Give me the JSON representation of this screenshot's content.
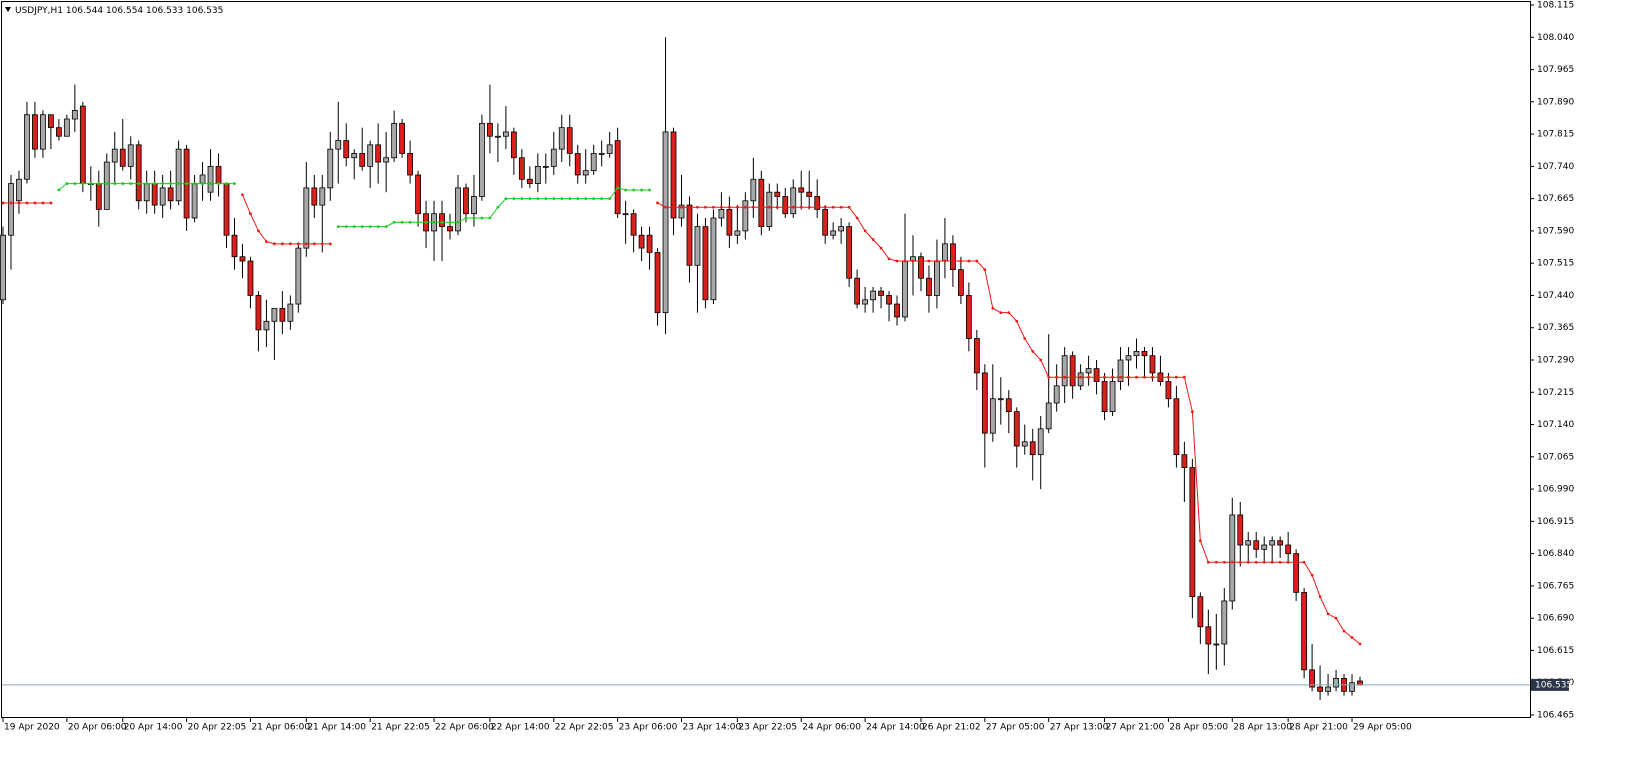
{
  "chart_data": {
    "type": "candlestick",
    "title": "USDJPY,H1",
    "open": [
      107.43,
      107.58,
      107.66,
      107.71,
      107.86,
      107.78,
      107.86,
      107.83,
      107.81,
      107.85,
      107.88,
      107.7,
      107.7,
      107.64,
      107.75,
      107.78,
      107.74,
      107.79,
      107.66,
      107.7,
      107.65,
      107.69,
      107.66,
      107.78,
      107.62,
      107.7,
      107.68,
      107.74,
      107.7,
      107.58,
      107.53,
      107.52,
      107.44,
      107.36,
      107.38,
      107.41,
      107.38,
      107.42,
      107.55,
      107.69,
      107.65,
      107.69,
      107.78,
      107.8,
      107.76,
      107.77,
      107.74,
      107.79,
      107.75,
      107.76,
      107.84,
      107.77,
      107.72,
      107.63,
      107.59,
      107.63,
      107.6,
      107.59,
      107.69,
      107.63,
      107.67,
      107.84,
      107.81,
      107.81,
      107.82,
      107.76,
      107.71,
      107.7,
      107.74,
      107.74,
      107.78,
      107.83,
      107.77,
      107.72,
      107.73,
      107.77,
      107.77,
      107.8,
      107.63,
      107.63,
      107.58,
      107.58,
      107.54,
      107.4,
      107.82,
      107.62,
      107.65,
      107.51,
      107.6,
      107.43,
      107.62,
      107.64,
      107.58,
      107.59,
      107.66,
      107.71,
      107.6,
      107.68,
      107.67,
      107.63,
      107.69,
      107.68,
      107.67,
      107.64,
      107.58,
      107.59,
      107.6,
      107.48,
      107.42,
      107.43,
      107.45,
      107.44,
      107.42,
      107.39,
      107.52,
      107.53,
      107.48,
      107.44,
      107.52,
      107.56,
      107.5,
      107.44,
      107.34,
      107.26,
      107.12,
      107.2,
      107.2,
      107.17,
      107.09,
      107.1,
      107.07,
      107.13,
      107.19,
      107.23,
      107.3,
      107.23,
      107.26,
      107.27,
      107.24,
      107.17,
      107.24,
      107.29,
      107.3,
      107.31,
      107.3,
      107.26,
      107.24,
      107.2,
      107.07,
      107.04,
      106.74,
      106.67,
      106.63,
      106.63,
      106.73,
      106.93,
      106.86,
      106.87,
      106.85,
      106.86,
      106.87,
      106.86,
      106.84,
      106.75,
      106.57,
      106.53,
      106.52,
      106.53,
      106.55,
      106.52,
      106.544
    ],
    "high": [
      107.6,
      107.72,
      107.73,
      107.89,
      107.89,
      107.87,
      107.86,
      107.85,
      107.86,
      107.93,
      107.89,
      107.74,
      107.73,
      107.77,
      107.82,
      107.85,
      107.81,
      107.8,
      107.73,
      107.73,
      107.72,
      107.73,
      107.8,
      107.79,
      107.72,
      107.75,
      107.78,
      107.77,
      107.7,
      107.62,
      107.56,
      107.53,
      107.45,
      107.43,
      107.4,
      107.45,
      107.44,
      107.56,
      107.75,
      107.72,
      107.72,
      107.82,
      107.89,
      107.84,
      107.78,
      107.83,
      107.8,
      107.84,
      107.82,
      107.87,
      107.85,
      107.8,
      107.73,
      107.66,
      107.66,
      107.66,
      107.63,
      107.72,
      107.7,
      107.72,
      107.86,
      107.93,
      107.84,
      107.88,
      107.83,
      107.78,
      107.74,
      107.77,
      107.77,
      107.82,
      107.86,
      107.86,
      107.79,
      107.78,
      107.79,
      107.8,
      107.82,
      107.83,
      107.66,
      107.64,
      107.6,
      107.6,
      107.55,
      108.04,
      107.83,
      107.72,
      107.67,
      107.63,
      107.62,
      107.64,
      107.68,
      107.67,
      107.65,
      107.68,
      107.76,
      107.73,
      107.7,
      107.7,
      107.69,
      107.71,
      107.73,
      107.73,
      107.71,
      107.65,
      107.61,
      107.62,
      107.61,
      107.5,
      107.46,
      107.46,
      107.46,
      107.45,
      107.44,
      107.63,
      107.58,
      107.54,
      107.51,
      107.57,
      107.62,
      107.58,
      107.53,
      107.47,
      107.36,
      107.28,
      107.28,
      107.25,
      107.22,
      107.18,
      107.14,
      107.13,
      107.16,
      107.35,
      107.28,
      107.32,
      107.31,
      107.28,
      107.3,
      107.29,
      107.26,
      107.27,
      107.32,
      107.32,
      107.34,
      107.32,
      107.32,
      107.3,
      107.26,
      107.23,
      107.1,
      107.06,
      106.75,
      106.71,
      106.7,
      106.76,
      106.97,
      106.96,
      106.89,
      106.89,
      106.88,
      106.88,
      106.88,
      106.89,
      106.85,
      106.76,
      106.63,
      106.58,
      106.56,
      106.57,
      106.56,
      106.56,
      106.554
    ],
    "low": [
      107.42,
      107.5,
      107.63,
      107.7,
      107.76,
      107.76,
      107.78,
      107.8,
      107.81,
      107.82,
      107.68,
      107.66,
      107.6,
      107.64,
      107.7,
      107.73,
      107.71,
      107.64,
      107.63,
      107.63,
      107.62,
      107.64,
      107.65,
      107.59,
      107.61,
      107.66,
      107.66,
      107.67,
      107.55,
      107.5,
      107.48,
      107.41,
      107.31,
      107.32,
      107.29,
      107.35,
      107.36,
      107.4,
      107.53,
      107.62,
      107.54,
      107.66,
      107.7,
      107.74,
      107.71,
      107.73,
      107.69,
      107.7,
      107.68,
      107.75,
      107.76,
      107.7,
      107.6,
      107.55,
      107.52,
      107.52,
      107.57,
      107.58,
      107.61,
      107.6,
      107.66,
      107.77,
      107.75,
      107.78,
      107.72,
      107.69,
      107.69,
      107.68,
      107.7,
      107.72,
      107.75,
      107.74,
      107.7,
      107.7,
      107.72,
      107.74,
      107.76,
      107.62,
      107.56,
      107.54,
      107.52,
      107.5,
      107.37,
      107.35,
      107.58,
      107.6,
      107.47,
      107.4,
      107.41,
      107.42,
      107.6,
      107.55,
      107.56,
      107.57,
      107.62,
      107.58,
      107.59,
      107.64,
      107.62,
      107.62,
      107.64,
      107.64,
      107.62,
      107.56,
      107.57,
      107.56,
      107.46,
      107.41,
      107.4,
      107.4,
      107.41,
      107.38,
      107.37,
      107.38,
      107.44,
      107.45,
      107.4,
      107.41,
      107.48,
      107.46,
      107.42,
      107.31,
      107.22,
      107.04,
      107.1,
      107.14,
      107.12,
      107.04,
      107.07,
      107.01,
      106.99,
      107.12,
      107.17,
      107.19,
      107.2,
      107.22,
      107.23,
      107.21,
      107.15,
      107.16,
      107.22,
      107.23,
      107.27,
      107.25,
      107.24,
      107.23,
      107.18,
      107.04,
      106.96,
      106.69,
      106.63,
      106.56,
      106.57,
      106.58,
      106.71,
      106.81,
      106.82,
      106.83,
      106.82,
      106.82,
      106.83,
      106.82,
      106.73,
      106.55,
      106.52,
      106.5,
      106.51,
      106.52,
      106.51,
      106.51,
      106.533
    ],
    "close": [
      107.58,
      107.7,
      107.71,
      107.86,
      107.78,
      107.86,
      107.83,
      107.81,
      107.85,
      107.87,
      107.7,
      107.7,
      107.64,
      107.75,
      107.78,
      107.74,
      107.79,
      107.66,
      107.7,
      107.65,
      107.69,
      107.66,
      107.78,
      107.62,
      107.7,
      107.72,
      107.74,
      107.7,
      107.58,
      107.53,
      107.52,
      107.44,
      107.36,
      107.38,
      107.41,
      107.38,
      107.42,
      107.55,
      107.69,
      107.65,
      107.69,
      107.78,
      107.8,
      107.76,
      107.77,
      107.74,
      107.79,
      107.75,
      107.76,
      107.84,
      107.77,
      107.72,
      107.63,
      107.59,
      107.63,
      107.6,
      107.59,
      107.69,
      107.63,
      107.67,
      107.84,
      107.81,
      107.81,
      107.82,
      107.76,
      107.71,
      107.7,
      107.74,
      107.74,
      107.78,
      107.83,
      107.77,
      107.72,
      107.73,
      107.77,
      107.77,
      107.79,
      107.63,
      107.63,
      107.58,
      107.55,
      107.54,
      107.4,
      107.82,
      107.62,
      107.65,
      107.51,
      107.6,
      107.43,
      107.62,
      107.64,
      107.58,
      107.59,
      107.66,
      107.71,
      107.6,
      107.68,
      107.67,
      107.63,
      107.69,
      107.68,
      107.67,
      107.64,
      107.58,
      107.59,
      107.6,
      107.48,
      107.42,
      107.43,
      107.45,
      107.44,
      107.42,
      107.39,
      107.52,
      107.53,
      107.48,
      107.44,
      107.52,
      107.56,
      107.5,
      107.44,
      107.34,
      107.26,
      107.12,
      107.2,
      107.2,
      107.17,
      107.09,
      107.1,
      107.07,
      107.13,
      107.19,
      107.23,
      107.3,
      107.23,
      107.26,
      107.27,
      107.24,
      107.17,
      107.24,
      107.29,
      107.3,
      107.31,
      107.3,
      107.26,
      107.24,
      107.2,
      107.07,
      107.04,
      106.74,
      106.67,
      106.63,
      106.63,
      106.73,
      106.93,
      106.86,
      106.87,
      106.85,
      106.86,
      106.87,
      106.86,
      106.84,
      106.75,
      106.57,
      106.53,
      106.52,
      106.53,
      106.55,
      106.52,
      106.54,
      106.535
    ],
    "up_color": "#a8a8a8",
    "down_color": "#d8201c",
    "price_line_color": "#8ea3b8",
    "price_label_color": "#2a3646",
    "series": [
      {
        "color": "#f01818",
        "values": [
          107.655,
          107.655,
          107.655,
          107.655,
          107.655,
          107.655,
          107.655,
          null,
          null,
          null,
          null,
          null,
          null,
          null,
          null,
          null,
          null,
          null,
          null,
          null,
          null,
          null,
          null,
          null,
          null,
          null,
          null,
          null,
          null,
          null,
          107.674,
          107.63,
          107.59,
          107.565,
          107.56,
          107.56,
          107.56,
          107.56,
          107.56,
          107.56,
          107.56,
          107.56,
          null,
          null,
          null,
          null,
          null,
          null,
          null,
          null,
          null,
          null,
          null,
          null,
          null,
          null,
          null,
          null,
          null,
          null,
          null,
          null,
          null,
          null,
          null,
          null,
          null,
          null,
          null,
          null,
          null,
          null,
          null,
          null,
          null,
          null,
          null,
          null,
          null,
          null,
          null,
          null,
          107.655,
          107.645,
          107.645,
          107.645,
          107.645,
          107.645,
          107.645,
          107.645,
          107.645,
          107.645,
          107.645,
          107.645,
          107.645,
          107.645,
          107.645,
          107.645,
          107.645,
          107.645,
          107.645,
          107.645,
          107.645,
          107.645,
          107.645,
          107.645,
          107.645,
          107.62,
          107.59,
          107.57,
          107.55,
          107.525,
          107.52,
          107.52,
          107.52,
          107.52,
          107.52,
          107.52,
          107.52,
          107.52,
          107.52,
          107.52,
          107.52,
          107.5,
          107.41,
          107.4,
          107.4,
          107.38,
          107.34,
          107.31,
          107.29,
          107.25,
          107.25,
          107.25,
          107.25,
          107.25,
          107.25,
          107.25,
          107.25,
          107.25,
          107.25,
          107.25,
          107.25,
          107.25,
          107.25,
          107.25,
          107.25,
          107.25,
          107.25,
          107.17,
          106.87,
          106.82,
          106.82,
          106.82,
          106.82,
          106.82,
          106.82,
          106.82,
          106.82,
          106.82,
          106.82,
          106.82,
          106.82,
          106.82,
          106.79,
          106.74,
          106.7,
          106.69,
          106.66,
          106.645,
          106.63
        ]
      },
      {
        "color": "#22c822",
        "values": [
          null,
          null,
          null,
          null,
          null,
          null,
          null,
          107.685,
          107.7,
          107.7,
          107.7,
          107.7,
          107.7,
          107.7,
          107.7,
          107.7,
          107.7,
          107.7,
          107.7,
          107.7,
          107.7,
          107.7,
          107.7,
          107.7,
          107.7,
          107.7,
          107.7,
          107.7,
          107.7,
          107.7,
          null,
          null,
          null,
          null,
          null,
          null,
          null,
          null,
          null,
          null,
          null,
          null,
          107.6,
          107.6,
          107.6,
          107.6,
          107.6,
          107.6,
          107.6,
          107.61,
          107.61,
          107.61,
          107.61,
          107.61,
          107.61,
          107.61,
          107.61,
          107.61,
          107.62,
          107.62,
          107.62,
          107.62,
          107.645,
          107.665,
          107.665,
          107.665,
          107.665,
          107.665,
          107.665,
          107.665,
          107.665,
          107.665,
          107.665,
          107.665,
          107.665,
          107.665,
          107.665,
          107.69,
          107.685,
          107.685,
          107.685,
          107.685,
          null,
          null,
          null,
          null,
          null,
          null,
          null,
          null,
          null,
          null,
          null,
          null,
          null,
          null,
          null,
          null,
          null,
          null,
          null,
          null,
          null,
          null,
          null,
          null,
          null,
          null,
          null,
          null,
          null,
          null,
          null,
          null,
          null,
          null,
          null,
          null,
          null,
          null,
          null,
          null,
          null,
          null,
          null,
          null,
          null,
          null,
          null,
          null,
          null,
          null,
          null,
          null,
          null,
          null,
          null,
          null,
          null,
          null,
          null,
          null,
          null,
          null,
          null,
          null,
          null,
          null,
          null,
          null,
          null,
          null,
          null,
          null,
          null,
          null,
          null,
          null,
          null,
          null,
          null,
          null,
          null,
          null,
          null,
          null,
          null,
          null,
          null,
          null,
          null
        ]
      }
    ],
    "ylim": [
      106.465,
      108.115
    ],
    "yticks": [
      108.115,
      {
        "value": 108.04,
        "label": "108.040"
      },
      107.965,
      {
        "value": 107.89,
        "label": "107.890"
      },
      107.815,
      {
        "value": 107.74,
        "label": "107.740"
      },
      107.665,
      {
        "value": 107.59,
        "label": "107.590"
      },
      107.515,
      {
        "value": 107.44,
        "label": "107.440"
      },
      107.365,
      {
        "value": 107.29,
        "label": "107.290"
      },
      107.215,
      {
        "value": 107.14,
        "label": "107.140"
      },
      107.065,
      {
        "value": 106.99,
        "label": "106.990"
      },
      106.915,
      {
        "value": 106.84,
        "label": "106.840"
      },
      106.765,
      {
        "value": 106.69,
        "label": "106.690"
      },
      106.615,
      {
        "value": 106.54,
        "label": "106.540"
      },
      106.465
    ],
    "xticks": [
      {
        "value": 0,
        "label": "19 Apr 2020"
      },
      {
        "value": 8,
        "label": "20 Apr 06:00"
      },
      {
        "value": 15,
        "label": "20 Apr 14:00"
      },
      {
        "value": 23,
        "label": "20 Apr 22:05"
      },
      {
        "value": 31,
        "label": "21 Apr 06:00"
      },
      {
        "value": 38,
        "label": "21 Apr 14:00"
      },
      {
        "value": 46,
        "label": "21 Apr 22:05"
      },
      {
        "value": 54,
        "label": "22 Apr 06:00"
      },
      {
        "value": 61,
        "label": "22 Apr 14:00"
      },
      {
        "value": 69,
        "label": "22 Apr 22:05"
      },
      {
        "value": 77,
        "label": "23 Apr 06:00"
      },
      {
        "value": 85,
        "label": "23 Apr 14:00"
      },
      {
        "value": 92,
        "label": "23 Apr 22:05"
      },
      {
        "value": 100,
        "label": "24 Apr 06:00"
      },
      {
        "value": 108,
        "label": "24 Apr 14:00"
      },
      {
        "value": 115,
        "label": "26 Apr 21:02"
      },
      {
        "value": 123,
        "label": "27 Apr 05:00"
      },
      {
        "value": 131,
        "label": "27 Apr 13:00"
      },
      {
        "value": 138,
        "label": "27 Apr 21:00"
      },
      {
        "value": 146,
        "label": "28 Apr 05:00"
      },
      {
        "value": 154,
        "label": "28 Apr 13:00"
      },
      {
        "value": 161,
        "label": "28 Apr 21:00"
      },
      {
        "value": 169,
        "label": "29 Apr 05:00"
      }
    ]
  }
}
